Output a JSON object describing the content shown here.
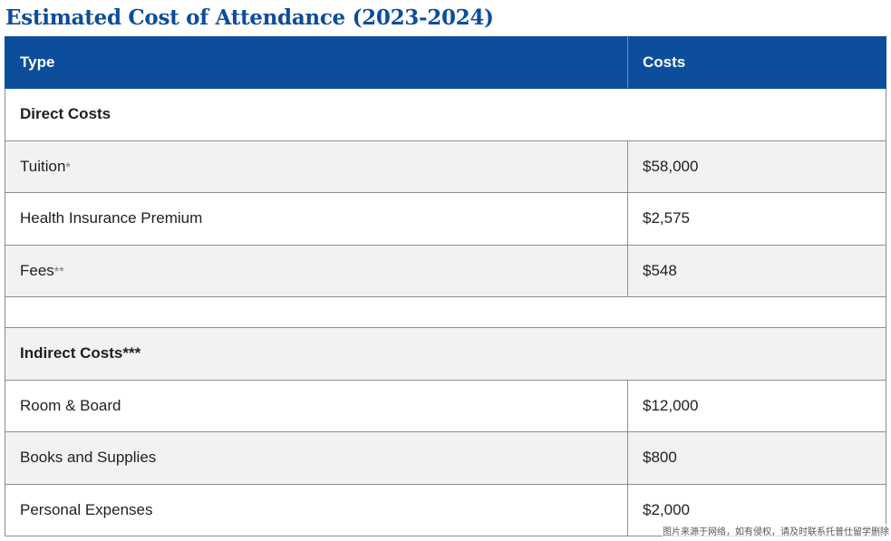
{
  "title": "Estimated Cost of Attendance (2023-2024)",
  "table": {
    "headers": {
      "type": "Type",
      "costs": "Costs"
    },
    "direct_section": {
      "label": "Direct Costs"
    },
    "direct_rows": [
      {
        "type": "Tuition",
        "mark": "*",
        "cost": "$58,000"
      },
      {
        "type": "Health Insurance Premium",
        "mark": "",
        "cost": "$2,575"
      },
      {
        "type": "Fees",
        "mark": "**",
        "cost": "$548"
      }
    ],
    "indirect_section": {
      "label": "Indirect Costs",
      "mark": "***"
    },
    "indirect_rows": [
      {
        "type": "Room & Board",
        "cost": "$12,000"
      },
      {
        "type": "Books and Supplies",
        "cost": "$800"
      },
      {
        "type": "Personal Expenses",
        "cost": "$2,000"
      }
    ]
  },
  "watermark": "图片来源于网络，如有侵权，请及时联系托普仕留学删除"
}
